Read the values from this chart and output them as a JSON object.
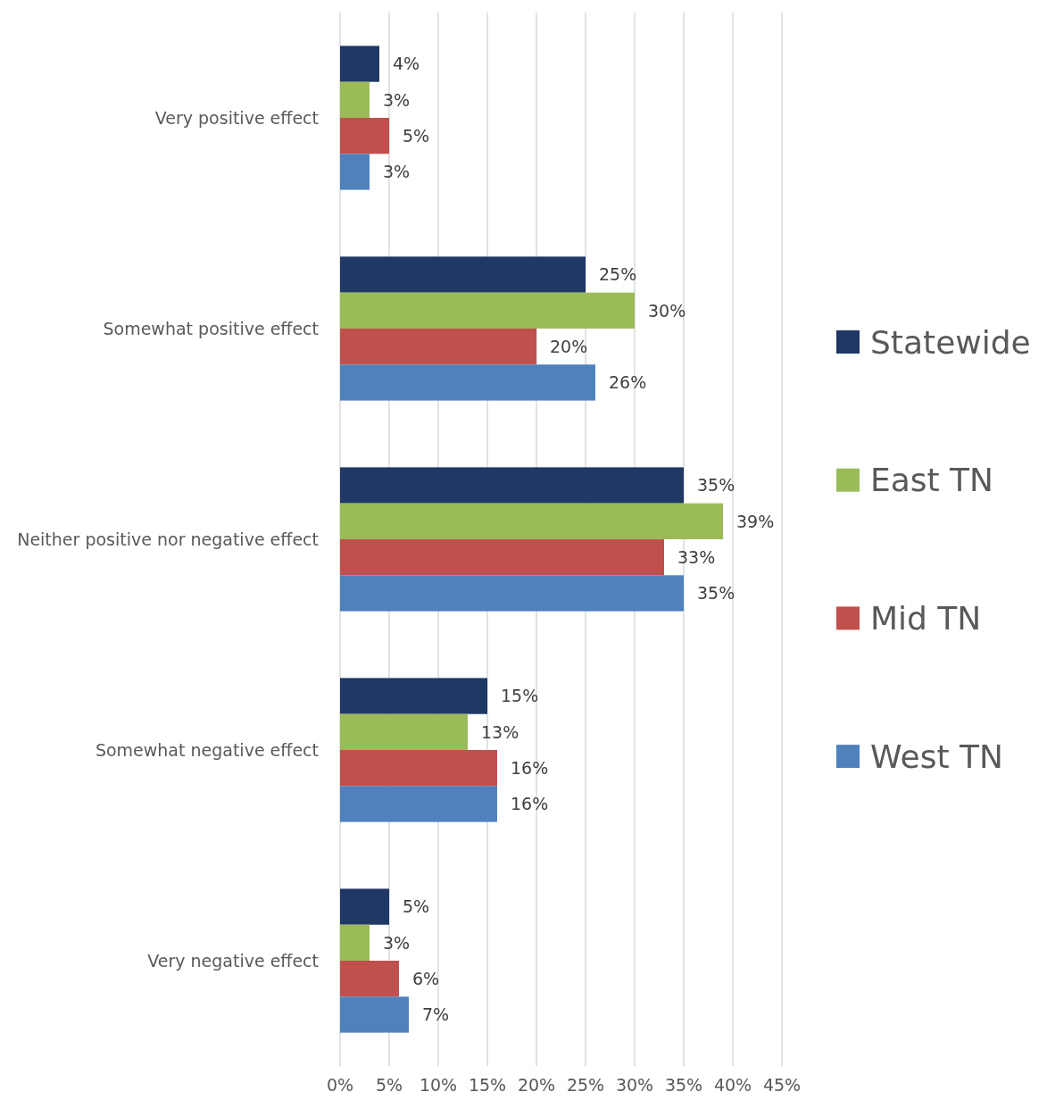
{
  "chart_data": {
    "type": "bar",
    "orientation": "horizontal",
    "categories": [
      "Very positive effect",
      "Somewhat positive effect",
      "Neither positive nor negative effect",
      "Somewhat negative effect",
      "Very negative effect"
    ],
    "series": [
      {
        "name": "Statewide",
        "color": "#1f3864",
        "values": [
          4,
          25,
          35,
          15,
          5
        ],
        "value_labels": [
          "4%",
          "25%",
          "35%",
          "15%",
          "5%"
        ]
      },
      {
        "name": "East TN",
        "color": "#9bbb59",
        "values": [
          3,
          30,
          39,
          13,
          3
        ],
        "value_labels": [
          "3%",
          "30%",
          "39%",
          "13%",
          "3%"
        ]
      },
      {
        "name": "Mid TN",
        "color": "#c0504d",
        "values": [
          5,
          20,
          33,
          16,
          6
        ],
        "value_labels": [
          "5%",
          "20%",
          "33%",
          "16%",
          "6%"
        ]
      },
      {
        "name": "West TN",
        "color": "#4f81bd",
        "values": [
          3,
          26,
          35,
          16,
          7
        ],
        "value_labels": [
          "3%",
          "26%",
          "35%",
          "16%",
          "7%"
        ]
      }
    ],
    "xlim": [
      0,
      45
    ],
    "xticks": [
      {
        "value": 0,
        "label": "0%"
      },
      {
        "value": 5,
        "label": "5%"
      },
      {
        "value": 10,
        "label": "10%"
      },
      {
        "value": 15,
        "label": "15%"
      },
      {
        "value": 20,
        "label": "20%"
      },
      {
        "value": 25,
        "label": "25%"
      },
      {
        "value": 30,
        "label": "30%"
      },
      {
        "value": 35,
        "label": "35%"
      },
      {
        "value": 40,
        "label": "40%"
      },
      {
        "value": 45,
        "label": "45%"
      }
    ],
    "grid": "x",
    "legend": "right"
  }
}
